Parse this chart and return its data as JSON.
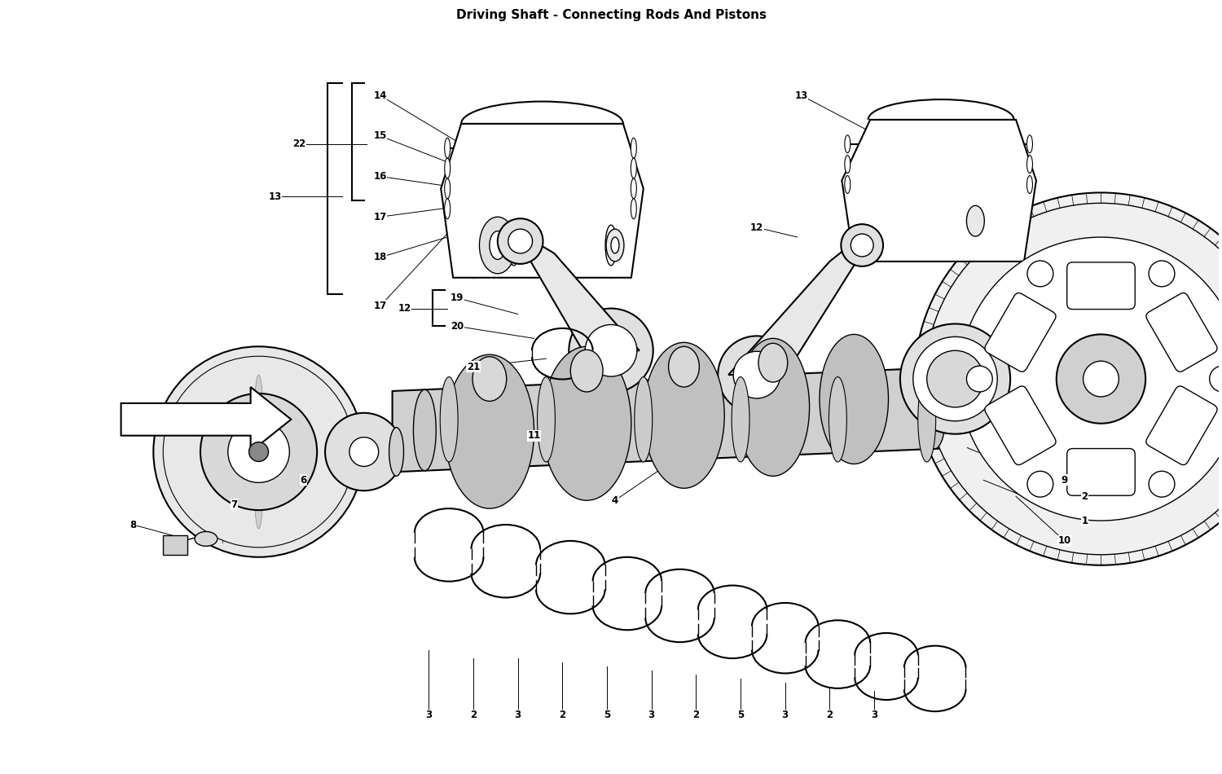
{
  "title": "Driving Shaft - Connecting Rods And Pistons",
  "bg_color": "#FFFFFF",
  "line_color": "#000000",
  "fig_width": 15.0,
  "fig_height": 9.5
}
